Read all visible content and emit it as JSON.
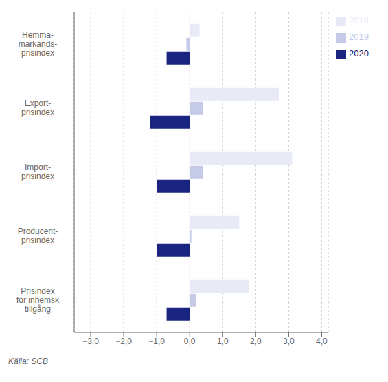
{
  "chart_data": {
    "type": "bar",
    "orientation": "horizontal",
    "categories": [
      "Hemma-\nmarkands-\nprisindex",
      "Export-\nprisindex",
      "Import-\nprisindex",
      "Producent-\nprisindex",
      "Prisindex\nför inhemsk\ntillgång"
    ],
    "series": [
      {
        "name": "2018",
        "color": "#e8eaf6",
        "values": [
          0.3,
          2.7,
          3.1,
          1.5,
          1.8
        ]
      },
      {
        "name": "2019",
        "color": "#c5cae9",
        "values": [
          -0.1,
          0.4,
          0.4,
          0.05,
          0.2
        ]
      },
      {
        "name": "2020",
        "color": "#1a237e",
        "values": [
          -0.7,
          -1.2,
          -1.0,
          -1.0,
          -0.7
        ]
      }
    ],
    "xlim": [
      -3.5,
      4.2
    ],
    "xticks": [
      {
        "value": -3.0,
        "label": "−3,0"
      },
      {
        "value": -2.0,
        "label": "−2,0"
      },
      {
        "value": -1.0,
        "label": "−1,0"
      },
      {
        "value": 0.0,
        "label": "0,0"
      },
      {
        "value": 1.0,
        "label": "1,0"
      },
      {
        "value": 2.0,
        "label": "2,0"
      },
      {
        "value": 3.0,
        "label": "3,0"
      },
      {
        "value": 4.0,
        "label": "4,0"
      }
    ],
    "grid": true,
    "legend": "right",
    "annotations": [
      "Källa: SCB"
    ]
  }
}
